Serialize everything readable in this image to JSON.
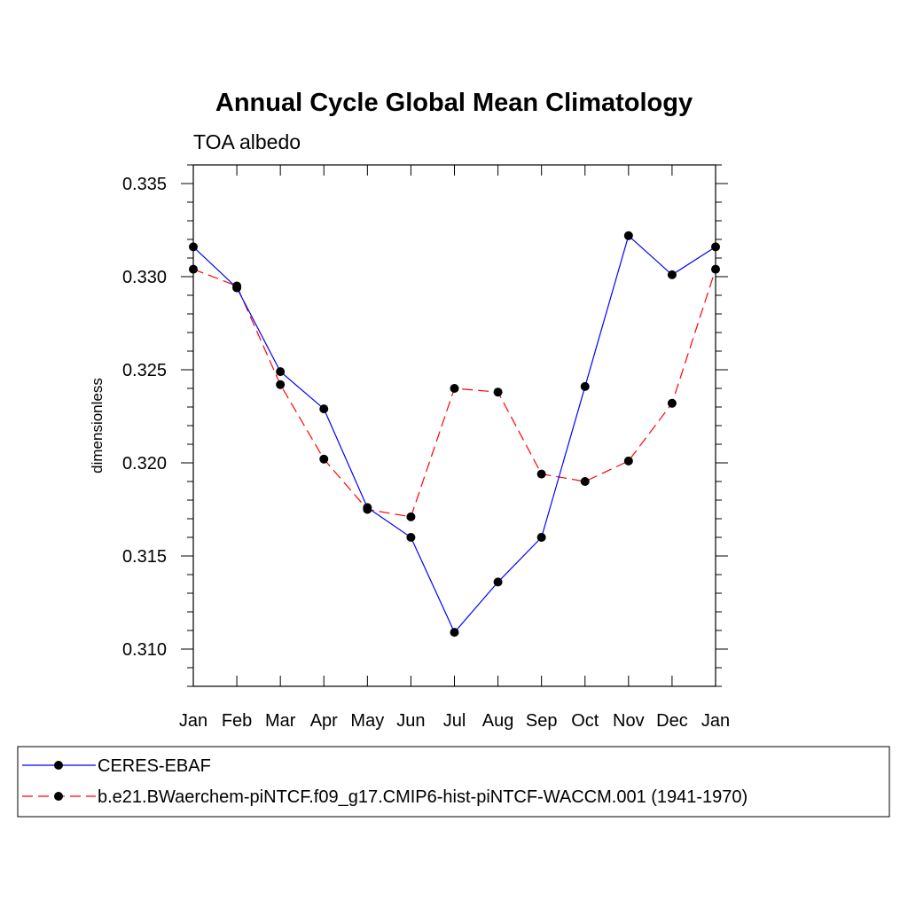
{
  "chart_data": {
    "type": "line",
    "title": "Annual Cycle Global Mean Climatology",
    "subtitle": "TOA albedo",
    "ylabel": "dimensionless",
    "xlabel": "",
    "categories": [
      "Jan",
      "Feb",
      "Mar",
      "Apr",
      "May",
      "Jun",
      "Jul",
      "Aug",
      "Sep",
      "Oct",
      "Nov",
      "Dec",
      "Jan"
    ],
    "ylim": [
      0.308,
      0.336
    ],
    "yticks": [
      "0.310",
      "0.315",
      "0.320",
      "0.325",
      "0.330",
      "0.335"
    ],
    "ytick_values": [
      0.31,
      0.315,
      0.32,
      0.325,
      0.33,
      0.335
    ],
    "grid": false,
    "legend_position": "bottom",
    "series": [
      {
        "name": "CERES-EBAF",
        "color": "#0000ff",
        "dash": "solid",
        "values": [
          0.3316,
          0.3294,
          0.3249,
          0.3229,
          0.3176,
          0.316,
          0.3109,
          0.3136,
          0.316,
          0.3241,
          0.3322,
          0.3301,
          0.3316
        ]
      },
      {
        "name": "b.e21.BWaerchem-piNTCF.f09_g17.CMIP6-hist-piNTCF-WACCM.001 (1941-1970)",
        "color": "#ff0000",
        "dash": "dashed",
        "values": [
          0.3304,
          0.3295,
          0.3242,
          0.3202,
          0.3175,
          0.3171,
          0.324,
          0.3238,
          0.3194,
          0.319,
          0.3201,
          0.3232,
          0.3304
        ]
      }
    ]
  }
}
